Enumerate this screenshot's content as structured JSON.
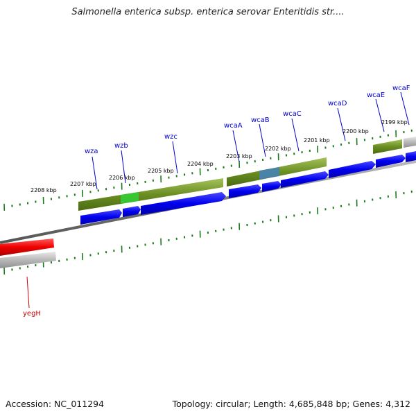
{
  "title": "Salmonella enterica subsp. enterica serovar Enteritidis str....",
  "footer": {
    "accession": "Accession: NC_011294",
    "summary": "Topology: circular; Length: 4,685,848 bp; Genes: 4,312"
  },
  "scale_labels": [
    "2208 kbp",
    "2207 kbp",
    "2206 kbp",
    "2205 kbp",
    "2204 kbp",
    "2203 kbp",
    "2202 kbp",
    "2201 kbp",
    "2200 kbp",
    "2199 kbp"
  ],
  "genes": [
    {
      "name": "yegH",
      "color": "#cc0000"
    },
    {
      "name": "wza",
      "color": "#0000cc"
    },
    {
      "name": "wzb",
      "color": "#0000cc"
    },
    {
      "name": "wzc",
      "color": "#0000cc"
    },
    {
      "name": "wcaA",
      "color": "#0000cc"
    },
    {
      "name": "wcaB",
      "color": "#0000cc"
    },
    {
      "name": "wcaC",
      "color": "#0000cc"
    },
    {
      "name": "wcaD",
      "color": "#0000cc"
    },
    {
      "name": "wcaE",
      "color": "#0000cc"
    },
    {
      "name": "wcaF",
      "color": "#0000cc"
    }
  ],
  "colors": {
    "forward_gene": "#0000ee",
    "reverse_gene": "#ee0000",
    "forward_feature": "#6b8e23",
    "highlight_green": "#33cc33",
    "highlight_blue": "#4682b4",
    "grey_feature": "#b0b0b0",
    "backbone": "#808080",
    "ticks": "#1a7a1a"
  }
}
